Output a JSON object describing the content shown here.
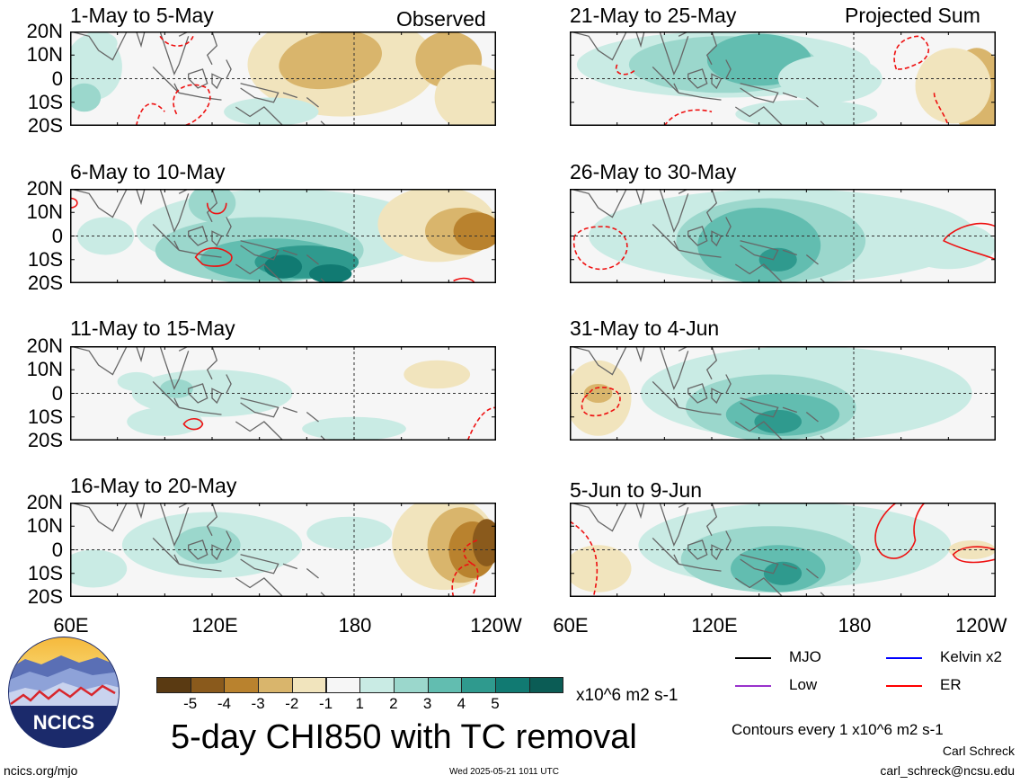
{
  "chart_data": [
    {
      "type": "heatmap",
      "title": "1-May to 5-May",
      "corner_label": "Observed",
      "column": "left",
      "row": 0
    },
    {
      "type": "heatmap",
      "title": "6-May to 10-May",
      "corner_label": "",
      "column": "left",
      "row": 1
    },
    {
      "type": "heatmap",
      "title": "11-May to 15-May",
      "corner_label": "",
      "column": "left",
      "row": 2
    },
    {
      "type": "heatmap",
      "title": "16-May to 20-May",
      "corner_label": "",
      "column": "left",
      "row": 3
    },
    {
      "type": "heatmap",
      "title": "21-May to 25-May",
      "corner_label": "Projected Sum",
      "column": "right",
      "row": 0
    },
    {
      "type": "heatmap",
      "title": "26-May to 30-May",
      "corner_label": "",
      "column": "right",
      "row": 1
    },
    {
      "type": "heatmap",
      "title": "31-May to 4-Jun",
      "corner_label": "",
      "column": "right",
      "row": 2
    },
    {
      "type": "heatmap",
      "title": "5-Jun to 9-Jun",
      "corner_label": "",
      "column": "right",
      "row": 3
    }
  ],
  "axes": {
    "y_ticks": [
      "20N",
      "10N",
      "0",
      "10S",
      "20S"
    ],
    "x_ticks": [
      "60E",
      "120E",
      "180",
      "120W"
    ],
    "x_range": [
      "60E",
      "120W"
    ],
    "y_range": [
      "20S",
      "20N"
    ]
  },
  "colorbar": {
    "colors": [
      "#5a3a12",
      "#8a5a1c",
      "#b9822e",
      "#d9b56c",
      "#f1e4bd",
      "#f6f6f6",
      "#c9ebe4",
      "#9bd7cc",
      "#62bdb0",
      "#2f9a8e",
      "#117a72",
      "#0b5c55"
    ],
    "ticks": [
      "-5",
      "-4",
      "-3",
      "-2",
      "-1",
      "1",
      "2",
      "3",
      "4",
      "5"
    ],
    "units": "x10^6 m2 s-1"
  },
  "main_title": "5-day CHI850 with TC removal",
  "legend": [
    {
      "label": "MJO",
      "color": "#000000"
    },
    {
      "label": "Kelvin x2",
      "color": "#0000ff"
    },
    {
      "label": "Low",
      "color": "#9933cc"
    },
    {
      "label": "ER",
      "color": "#ff0000"
    }
  ],
  "contour_note": "Contours every 1 x10^6 m2 s-1",
  "author": "Carl Schreck",
  "email": "carl_schreck@ncsu.edu",
  "site": "ncics.org/mjo",
  "timestamp": "Wed 2025-05-21 1011 UTC",
  "logo_text": "NCICS"
}
